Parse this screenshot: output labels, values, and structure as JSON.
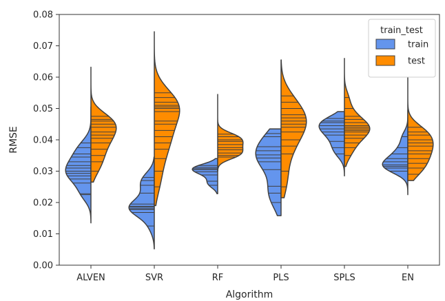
{
  "chart_data": {
    "type": "violin",
    "split": true,
    "inner": "stick",
    "xlabel": "Algorithm",
    "ylabel": "RMSE",
    "ylim": [
      0,
      0.08
    ],
    "yticks": [
      "0.00",
      "0.01",
      "0.02",
      "0.03",
      "0.04",
      "0.05",
      "0.06",
      "0.07",
      "0.08"
    ],
    "grid": false,
    "legend": {
      "title": "train_test",
      "placement": "top-right",
      "entries": [
        {
          "label": "train",
          "color": "#6495ed"
        },
        {
          "label": "test",
          "color": "#ff8c00"
        }
      ]
    },
    "categories": [
      "ALVEN",
      "SVR",
      "RF",
      "PLS",
      "SPLS",
      "EN"
    ],
    "series": [
      {
        "name": "train",
        "color": "#6495ed",
        "data": [
          {
            "min": 0.0135,
            "max": 0.0505,
            "values": [
              0.0225,
              0.0228,
              0.0262,
              0.0275,
              0.0285,
              0.0293,
              0.03,
              0.031,
              0.0318,
              0.033,
              0.0345,
              0.0355,
              0.0375,
              0.039
            ]
          },
          {
            "min": 0.0052,
            "max": 0.0345,
            "values": [
              0.0125,
              0.0168,
              0.0178,
              0.018,
              0.0185,
              0.0188,
              0.0195,
              0.023,
              0.0255,
              0.027,
              0.028
            ]
          },
          {
            "min": 0.0228,
            "max": 0.034,
            "values": [
              0.0255,
              0.0268,
              0.0288,
              0.0298,
              0.0305,
              0.0308,
              0.0312,
              0.0318
            ]
          },
          {
            "min": 0.0158,
            "max": 0.0435,
            "values": [
              0.02,
              0.023,
              0.0252,
              0.0305,
              0.033,
              0.0342,
              0.0352,
              0.0365,
              0.0378,
              0.041,
              0.042
            ]
          },
          {
            "min": 0.0285,
            "max": 0.049,
            "values": [
              0.0355,
              0.0375,
              0.0395,
              0.0415,
              0.0425,
              0.0435,
              0.0445,
              0.0455,
              0.046,
              0.0468
            ]
          },
          {
            "min": 0.0225,
            "max": 0.0495,
            "values": [
              0.03,
              0.031,
              0.0315,
              0.032,
              0.033,
              0.034,
              0.0355,
              0.0375,
              0.041
            ]
          }
        ]
      },
      {
        "name": "test",
        "color": "#ff8c00",
        "data": [
          {
            "min": 0.0265,
            "max": 0.0632,
            "values": [
              0.03,
              0.033,
              0.035,
              0.037,
              0.039,
              0.0405,
              0.0415,
              0.0425,
              0.044,
              0.045,
              0.046,
              0.0465,
              0.0475
            ]
          },
          {
            "min": 0.019,
            "max": 0.0745,
            "values": [
              0.025,
              0.03,
              0.034,
              0.037,
              0.039,
              0.041,
              0.043,
              0.045,
              0.046,
              0.049,
              0.05,
              0.0505,
              0.051,
              0.052,
              0.0535,
              0.055
            ]
          },
          {
            "min": 0.03,
            "max": 0.0545,
            "values": [
              0.0345,
              0.035,
              0.0358,
              0.0368,
              0.0375,
              0.0385,
              0.0395,
              0.04,
              0.041,
              0.0418
            ]
          },
          {
            "min": 0.0215,
            "max": 0.0655,
            "values": [
              0.025,
              0.03,
              0.0355,
              0.038,
              0.04,
              0.0425,
              0.044,
              0.045,
              0.046,
              0.047,
              0.048,
              0.05,
              0.052,
              0.054
            ]
          },
          {
            "min": 0.0315,
            "max": 0.066,
            "values": [
              0.035,
              0.0375,
              0.039,
              0.0405,
              0.0415,
              0.0425,
              0.043,
              0.0435,
              0.044,
              0.0445,
              0.0455,
              0.0465,
              0.0475,
              0.05,
              0.0535
            ]
          },
          {
            "min": 0.027,
            "max": 0.06,
            "values": [
              0.029,
              0.031,
              0.0325,
              0.034,
              0.0355,
              0.0365,
              0.038,
              0.039,
              0.04,
              0.0415,
              0.0425,
              0.044
            ]
          }
        ]
      }
    ]
  }
}
